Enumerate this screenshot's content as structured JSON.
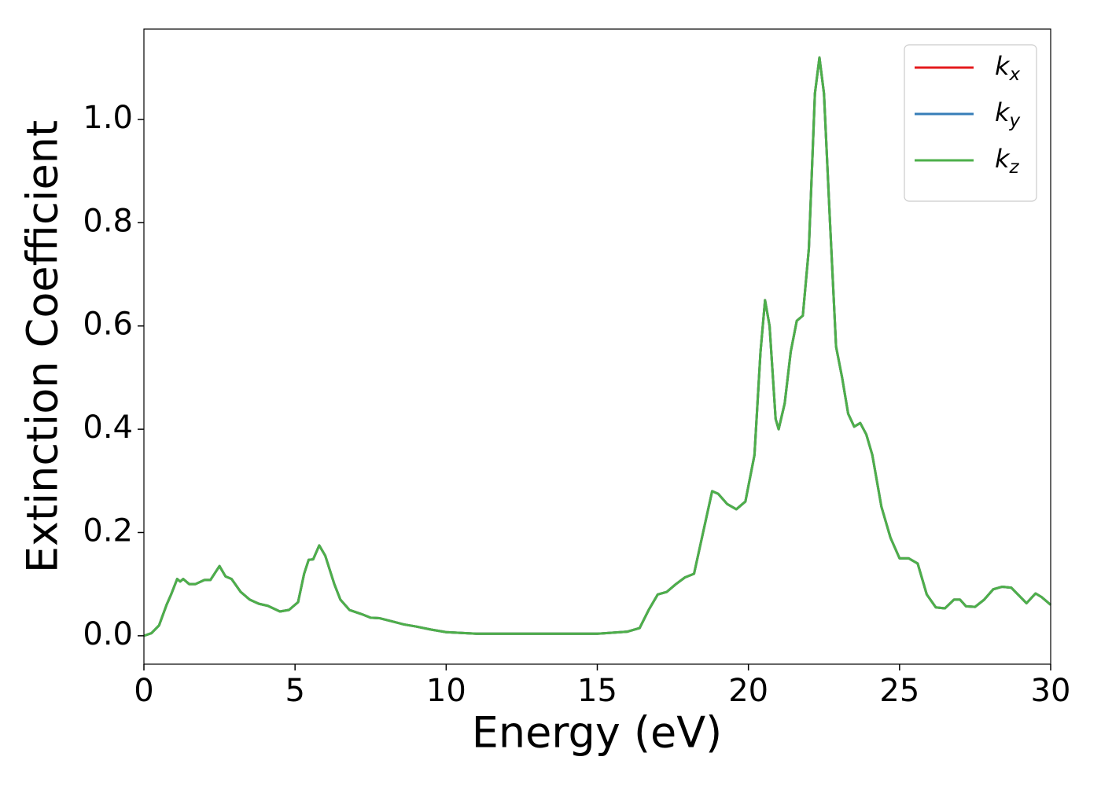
{
  "chart_data": {
    "type": "line",
    "xlabel": "Energy (eV)",
    "ylabel": "Extinction Coefficient",
    "x": [
      0,
      0.25,
      0.5,
      0.75,
      0.9,
      1.1,
      1.2,
      1.3,
      1.5,
      1.7,
      2.0,
      2.2,
      2.5,
      2.7,
      2.9,
      3.2,
      3.5,
      3.8,
      4.1,
      4.5,
      4.8,
      5.1,
      5.3,
      5.45,
      5.6,
      5.8,
      6.0,
      6.3,
      6.5,
      6.8,
      7.2,
      7.5,
      7.8,
      8.2,
      8.6,
      9.0,
      9.5,
      10,
      11,
      12,
      13,
      14,
      15,
      16,
      16.4,
      16.7,
      17.0,
      17.3,
      17.6,
      17.9,
      18.2,
      18.5,
      18.8,
      19.0,
      19.3,
      19.6,
      19.9,
      20.2,
      20.4,
      20.55,
      20.7,
      20.9,
      21.0,
      21.2,
      21.4,
      21.6,
      21.8,
      22.0,
      22.2,
      22.35,
      22.5,
      22.7,
      22.9,
      23.1,
      23.3,
      23.5,
      23.7,
      23.9,
      24.1,
      24.4,
      24.7,
      25.0,
      25.3,
      25.6,
      25.9,
      26.2,
      26.5,
      26.8,
      27.0,
      27.2,
      27.5,
      27.8,
      28.1,
      28.4,
      28.7,
      29.0,
      29.2,
      29.5,
      29.7,
      30
    ],
    "series": [
      {
        "name": "kx",
        "color": "#e41a1c",
        "values": [
          0.0,
          0.005,
          0.02,
          0.06,
          0.08,
          0.11,
          0.105,
          0.11,
          0.1,
          0.1,
          0.108,
          0.108,
          0.135,
          0.115,
          0.11,
          0.085,
          0.07,
          0.062,
          0.058,
          0.047,
          0.05,
          0.065,
          0.12,
          0.147,
          0.148,
          0.175,
          0.155,
          0.1,
          0.07,
          0.05,
          0.042,
          0.035,
          0.034,
          0.028,
          0.022,
          0.018,
          0.012,
          0.007,
          0.004,
          0.004,
          0.004,
          0.004,
          0.004,
          0.008,
          0.015,
          0.05,
          0.08,
          0.085,
          0.1,
          0.113,
          0.12,
          0.2,
          0.28,
          0.275,
          0.255,
          0.245,
          0.26,
          0.35,
          0.55,
          0.65,
          0.6,
          0.42,
          0.4,
          0.45,
          0.55,
          0.61,
          0.62,
          0.75,
          1.05,
          1.12,
          1.05,
          0.8,
          0.56,
          0.5,
          0.43,
          0.405,
          0.412,
          0.39,
          0.35,
          0.25,
          0.19,
          0.15,
          0.15,
          0.14,
          0.08,
          0.055,
          0.053,
          0.07,
          0.07,
          0.057,
          0.056,
          0.07,
          0.09,
          0.095,
          0.093,
          0.075,
          0.063,
          0.082,
          0.075,
          0.06
        ]
      },
      {
        "name": "ky",
        "color": "#377eb8",
        "values": [
          0.0,
          0.005,
          0.02,
          0.06,
          0.08,
          0.11,
          0.105,
          0.11,
          0.1,
          0.1,
          0.108,
          0.108,
          0.135,
          0.115,
          0.11,
          0.085,
          0.07,
          0.062,
          0.058,
          0.047,
          0.05,
          0.065,
          0.12,
          0.147,
          0.148,
          0.175,
          0.155,
          0.1,
          0.07,
          0.05,
          0.042,
          0.035,
          0.034,
          0.028,
          0.022,
          0.018,
          0.012,
          0.007,
          0.004,
          0.004,
          0.004,
          0.004,
          0.004,
          0.008,
          0.015,
          0.05,
          0.08,
          0.085,
          0.1,
          0.113,
          0.12,
          0.2,
          0.28,
          0.275,
          0.255,
          0.245,
          0.26,
          0.35,
          0.55,
          0.65,
          0.6,
          0.42,
          0.4,
          0.45,
          0.55,
          0.61,
          0.62,
          0.75,
          1.05,
          1.12,
          1.05,
          0.8,
          0.56,
          0.5,
          0.43,
          0.405,
          0.412,
          0.39,
          0.35,
          0.25,
          0.19,
          0.15,
          0.15,
          0.14,
          0.08,
          0.055,
          0.053,
          0.07,
          0.07,
          0.057,
          0.056,
          0.07,
          0.09,
          0.095,
          0.093,
          0.075,
          0.063,
          0.082,
          0.075,
          0.06
        ]
      },
      {
        "name": "kz",
        "color": "#4daf4a",
        "values": [
          0.0,
          0.005,
          0.02,
          0.06,
          0.08,
          0.11,
          0.105,
          0.11,
          0.1,
          0.1,
          0.108,
          0.108,
          0.135,
          0.115,
          0.11,
          0.085,
          0.07,
          0.062,
          0.058,
          0.047,
          0.05,
          0.065,
          0.12,
          0.147,
          0.148,
          0.175,
          0.155,
          0.1,
          0.07,
          0.05,
          0.042,
          0.035,
          0.034,
          0.028,
          0.022,
          0.018,
          0.012,
          0.007,
          0.004,
          0.004,
          0.004,
          0.004,
          0.004,
          0.008,
          0.015,
          0.05,
          0.08,
          0.085,
          0.1,
          0.113,
          0.12,
          0.2,
          0.28,
          0.275,
          0.255,
          0.245,
          0.26,
          0.35,
          0.55,
          0.65,
          0.6,
          0.42,
          0.4,
          0.45,
          0.55,
          0.61,
          0.62,
          0.75,
          1.05,
          1.12,
          1.05,
          0.8,
          0.56,
          0.5,
          0.43,
          0.405,
          0.412,
          0.39,
          0.35,
          0.25,
          0.19,
          0.15,
          0.15,
          0.14,
          0.08,
          0.055,
          0.053,
          0.07,
          0.07,
          0.057,
          0.056,
          0.07,
          0.09,
          0.095,
          0.093,
          0.075,
          0.063,
          0.082,
          0.075,
          0.06
        ]
      }
    ],
    "xlim": [
      0,
      30
    ],
    "xticks": [
      0,
      5,
      10,
      15,
      20,
      25,
      30
    ],
    "ylim": [
      -0.055,
      1.175
    ],
    "yticks": [
      {
        "value": 0,
        "label": "0.0"
      },
      0.2,
      0.4,
      0.6,
      0.8,
      {
        "value": 1,
        "label": "1.0"
      }
    ],
    "grid": false,
    "legend": "upper right"
  }
}
